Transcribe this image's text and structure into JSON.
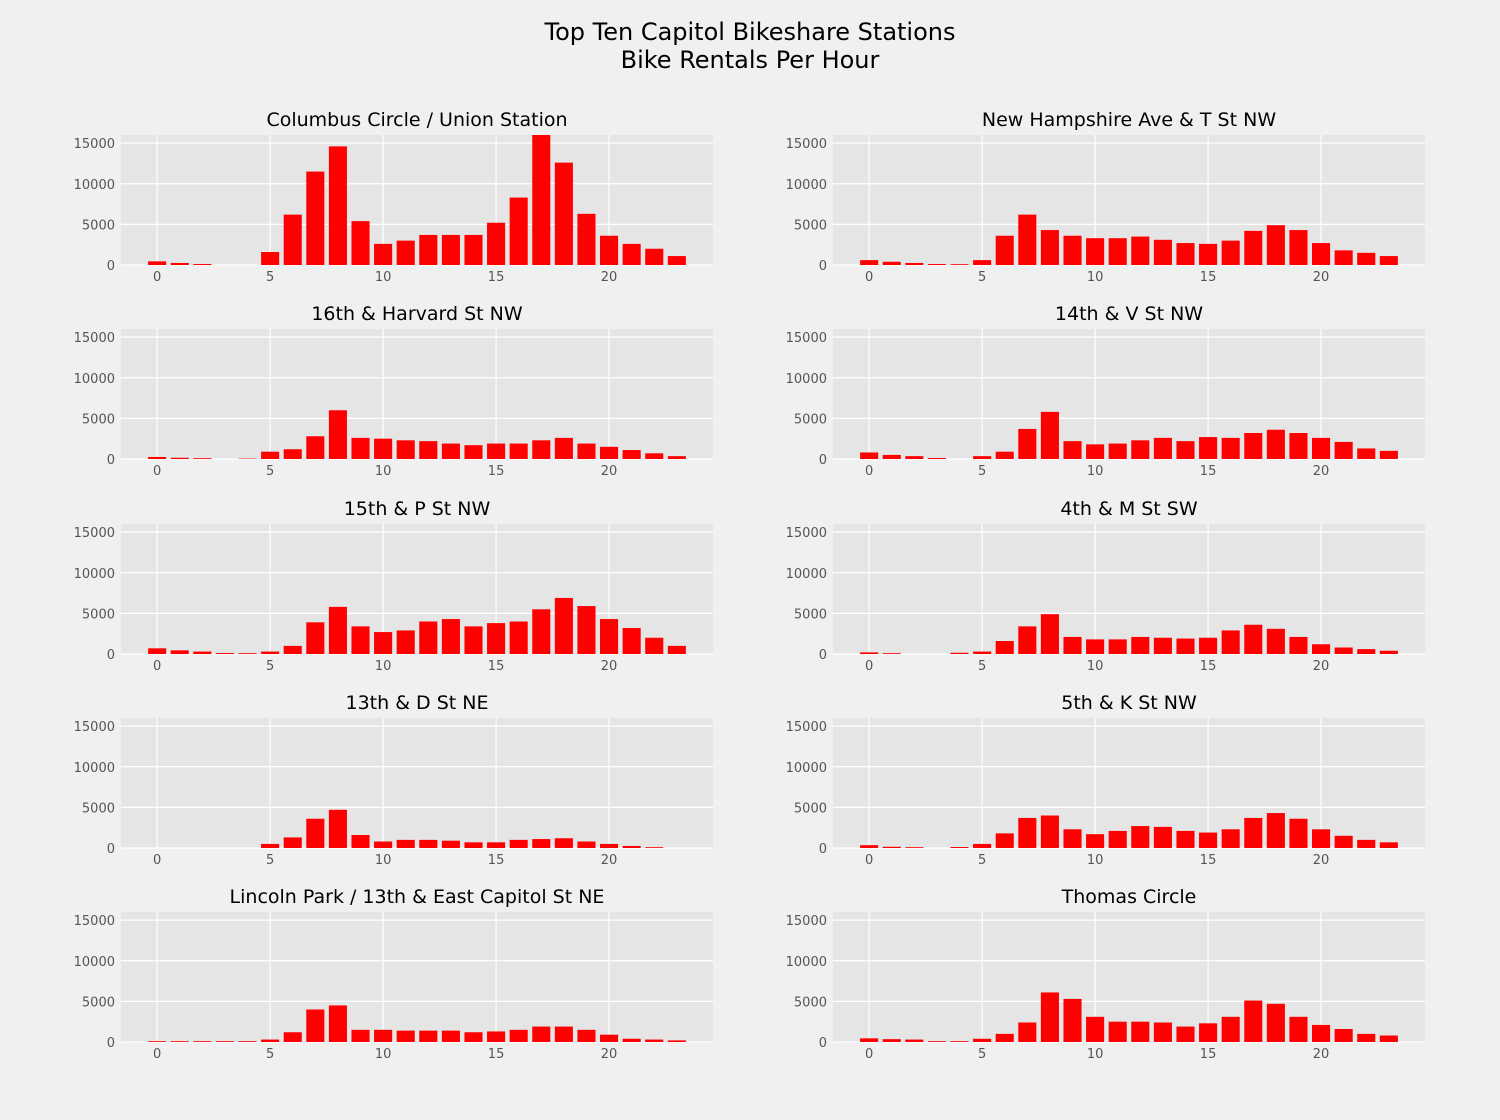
{
  "figure": {
    "title_line1": "Top Ten Capitol Bikeshare Stations",
    "title_line2": "Bike Rentals Per Hour",
    "bar_color": "#ff0000",
    "axes_bg": "#e5e5e5",
    "grid_color": "#ffffff",
    "figure_bg": "#f0f0f0"
  },
  "chart_data": [
    {
      "type": "bar",
      "title": "Columbus Circle / Union Station",
      "x": [
        0,
        1,
        2,
        3,
        4,
        5,
        6,
        7,
        8,
        9,
        10,
        11,
        12,
        13,
        14,
        15,
        16,
        17,
        18,
        19,
        20,
        21,
        22,
        23
      ],
      "values": [
        450,
        250,
        120,
        0,
        0,
        1600,
        6200,
        11500,
        14600,
        5400,
        2600,
        3000,
        3700,
        3700,
        3700,
        5200,
        8300,
        16000,
        12600,
        6300,
        3600,
        2600,
        2000,
        1100
      ],
      "xticks": [
        0,
        5,
        10,
        15,
        20
      ],
      "yticks": [
        0,
        5000,
        10000,
        15000
      ],
      "ylim": [
        0,
        16000
      ]
    },
    {
      "type": "bar",
      "title": "New Hampshire Ave & T St NW",
      "x": [
        0,
        1,
        2,
        3,
        4,
        5,
        6,
        7,
        8,
        9,
        10,
        11,
        12,
        13,
        14,
        15,
        16,
        17,
        18,
        19,
        20,
        21,
        22,
        23
      ],
      "values": [
        600,
        400,
        250,
        120,
        100,
        600,
        3600,
        6200,
        4300,
        3600,
        3300,
        3300,
        3500,
        3100,
        2700,
        2600,
        3000,
        4200,
        4900,
        4300,
        2700,
        1800,
        1500,
        1100
      ],
      "xticks": [
        0,
        5,
        10,
        15,
        20
      ],
      "yticks": [
        0,
        5000,
        10000,
        15000
      ],
      "ylim": [
        0,
        16000
      ]
    },
    {
      "type": "bar",
      "title": "16th & Harvard St NW",
      "x": [
        0,
        1,
        2,
        3,
        4,
        5,
        6,
        7,
        8,
        9,
        10,
        11,
        12,
        13,
        14,
        15,
        16,
        17,
        18,
        19,
        20,
        21,
        22,
        23
      ],
      "values": [
        250,
        150,
        100,
        0,
        50,
        900,
        1200,
        2800,
        6000,
        2600,
        2500,
        2300,
        2200,
        1900,
        1700,
        1900,
        1900,
        2300,
        2600,
        1900,
        1500,
        1100,
        700,
        350
      ],
      "xticks": [
        0,
        5,
        10,
        15,
        20
      ],
      "yticks": [
        0,
        5000,
        10000,
        15000
      ],
      "ylim": [
        0,
        16000
      ]
    },
    {
      "type": "bar",
      "title": "14th & V St NW",
      "x": [
        0,
        1,
        2,
        3,
        4,
        5,
        6,
        7,
        8,
        9,
        10,
        11,
        12,
        13,
        14,
        15,
        16,
        17,
        18,
        19,
        20,
        21,
        22,
        23
      ],
      "values": [
        800,
        500,
        350,
        120,
        0,
        350,
        900,
        3700,
        5800,
        2200,
        1800,
        1900,
        2300,
        2600,
        2200,
        2700,
        2600,
        3200,
        3600,
        3200,
        2600,
        2100,
        1300,
        1000
      ],
      "xticks": [
        0,
        5,
        10,
        15,
        20
      ],
      "yticks": [
        0,
        5000,
        10000,
        15000
      ],
      "ylim": [
        0,
        16000
      ]
    },
    {
      "type": "bar",
      "title": "15th & P St NW",
      "x": [
        0,
        1,
        2,
        3,
        4,
        5,
        6,
        7,
        8,
        9,
        10,
        11,
        12,
        13,
        14,
        15,
        16,
        17,
        18,
        19,
        20,
        21,
        22,
        23
      ],
      "values": [
        700,
        450,
        300,
        120,
        100,
        300,
        1000,
        3900,
        5800,
        3400,
        2700,
        2900,
        4000,
        4300,
        3400,
        3800,
        4000,
        5500,
        6900,
        5900,
        4300,
        3200,
        2000,
        1000
      ],
      "xticks": [
        0,
        5,
        10,
        15,
        20
      ],
      "yticks": [
        0,
        5000,
        10000,
        15000
      ],
      "ylim": [
        0,
        16000
      ]
    },
    {
      "type": "bar",
      "title": "4th & M St SW",
      "x": [
        0,
        1,
        2,
        3,
        4,
        5,
        6,
        7,
        8,
        9,
        10,
        11,
        12,
        13,
        14,
        15,
        16,
        17,
        18,
        19,
        20,
        21,
        22,
        23
      ],
      "values": [
        200,
        100,
        0,
        0,
        150,
        300,
        1600,
        3400,
        4900,
        2100,
        1800,
        1800,
        2100,
        2000,
        1900,
        2000,
        2900,
        3600,
        3100,
        2100,
        1200,
        800,
        600,
        400
      ],
      "xticks": [
        0,
        5,
        10,
        15,
        20
      ],
      "yticks": [
        0,
        5000,
        10000,
        15000
      ],
      "ylim": [
        0,
        16000
      ]
    },
    {
      "type": "bar",
      "title": "13th & D St NE",
      "x": [
        0,
        1,
        2,
        3,
        4,
        5,
        6,
        7,
        8,
        9,
        10,
        11,
        12,
        13,
        14,
        15,
        16,
        17,
        18,
        19,
        20,
        21,
        22,
        23
      ],
      "values": [
        0,
        0,
        0,
        0,
        0,
        500,
        1300,
        3600,
        4700,
        1600,
        800,
        1000,
        1000,
        900,
        700,
        700,
        1000,
        1100,
        1200,
        800,
        500,
        250,
        100,
        0
      ],
      "xticks": [
        0,
        5,
        10,
        15,
        20
      ],
      "yticks": [
        0,
        5000,
        10000,
        15000
      ],
      "ylim": [
        0,
        16000
      ]
    },
    {
      "type": "bar",
      "title": "5th & K St NW",
      "x": [
        0,
        1,
        2,
        3,
        4,
        5,
        6,
        7,
        8,
        9,
        10,
        11,
        12,
        13,
        14,
        15,
        16,
        17,
        18,
        19,
        20,
        21,
        22,
        23
      ],
      "values": [
        350,
        150,
        100,
        0,
        120,
        500,
        1800,
        3700,
        4000,
        2300,
        1700,
        2100,
        2700,
        2600,
        2100,
        1900,
        2300,
        3700,
        4300,
        3600,
        2300,
        1500,
        1000,
        700
      ],
      "xticks": [
        0,
        5,
        10,
        15,
        20
      ],
      "yticks": [
        0,
        5000,
        10000,
        15000
      ],
      "ylim": [
        0,
        16000
      ]
    },
    {
      "type": "bar",
      "title": "Lincoln Park / 13th & East Capitol St NE",
      "x": [
        0,
        1,
        2,
        3,
        4,
        5,
        6,
        7,
        8,
        9,
        10,
        11,
        12,
        13,
        14,
        15,
        16,
        17,
        18,
        19,
        20,
        21,
        22,
        23
      ],
      "values": [
        100,
        100,
        100,
        100,
        100,
        300,
        1200,
        4000,
        4500,
        1500,
        1500,
        1400,
        1400,
        1400,
        1200,
        1300,
        1500,
        1900,
        1900,
        1500,
        900,
        400,
        300,
        200
      ],
      "xticks": [
        0,
        5,
        10,
        15,
        20
      ],
      "yticks": [
        0,
        5000,
        10000,
        15000
      ],
      "ylim": [
        0,
        16000
      ]
    },
    {
      "type": "bar",
      "title": "Thomas Circle",
      "x": [
        0,
        1,
        2,
        3,
        4,
        5,
        6,
        7,
        8,
        9,
        10,
        11,
        12,
        13,
        14,
        15,
        16,
        17,
        18,
        19,
        20,
        21,
        22,
        23
      ],
      "values": [
        450,
        350,
        300,
        100,
        100,
        400,
        1000,
        2400,
        6100,
        5300,
        3100,
        2500,
        2500,
        2400,
        1900,
        2300,
        3100,
        5100,
        4700,
        3100,
        2100,
        1600,
        1000,
        800
      ],
      "xticks": [
        0,
        5,
        10,
        15,
        20
      ],
      "yticks": [
        0,
        5000,
        10000,
        15000
      ],
      "ylim": [
        0,
        16000
      ]
    }
  ]
}
